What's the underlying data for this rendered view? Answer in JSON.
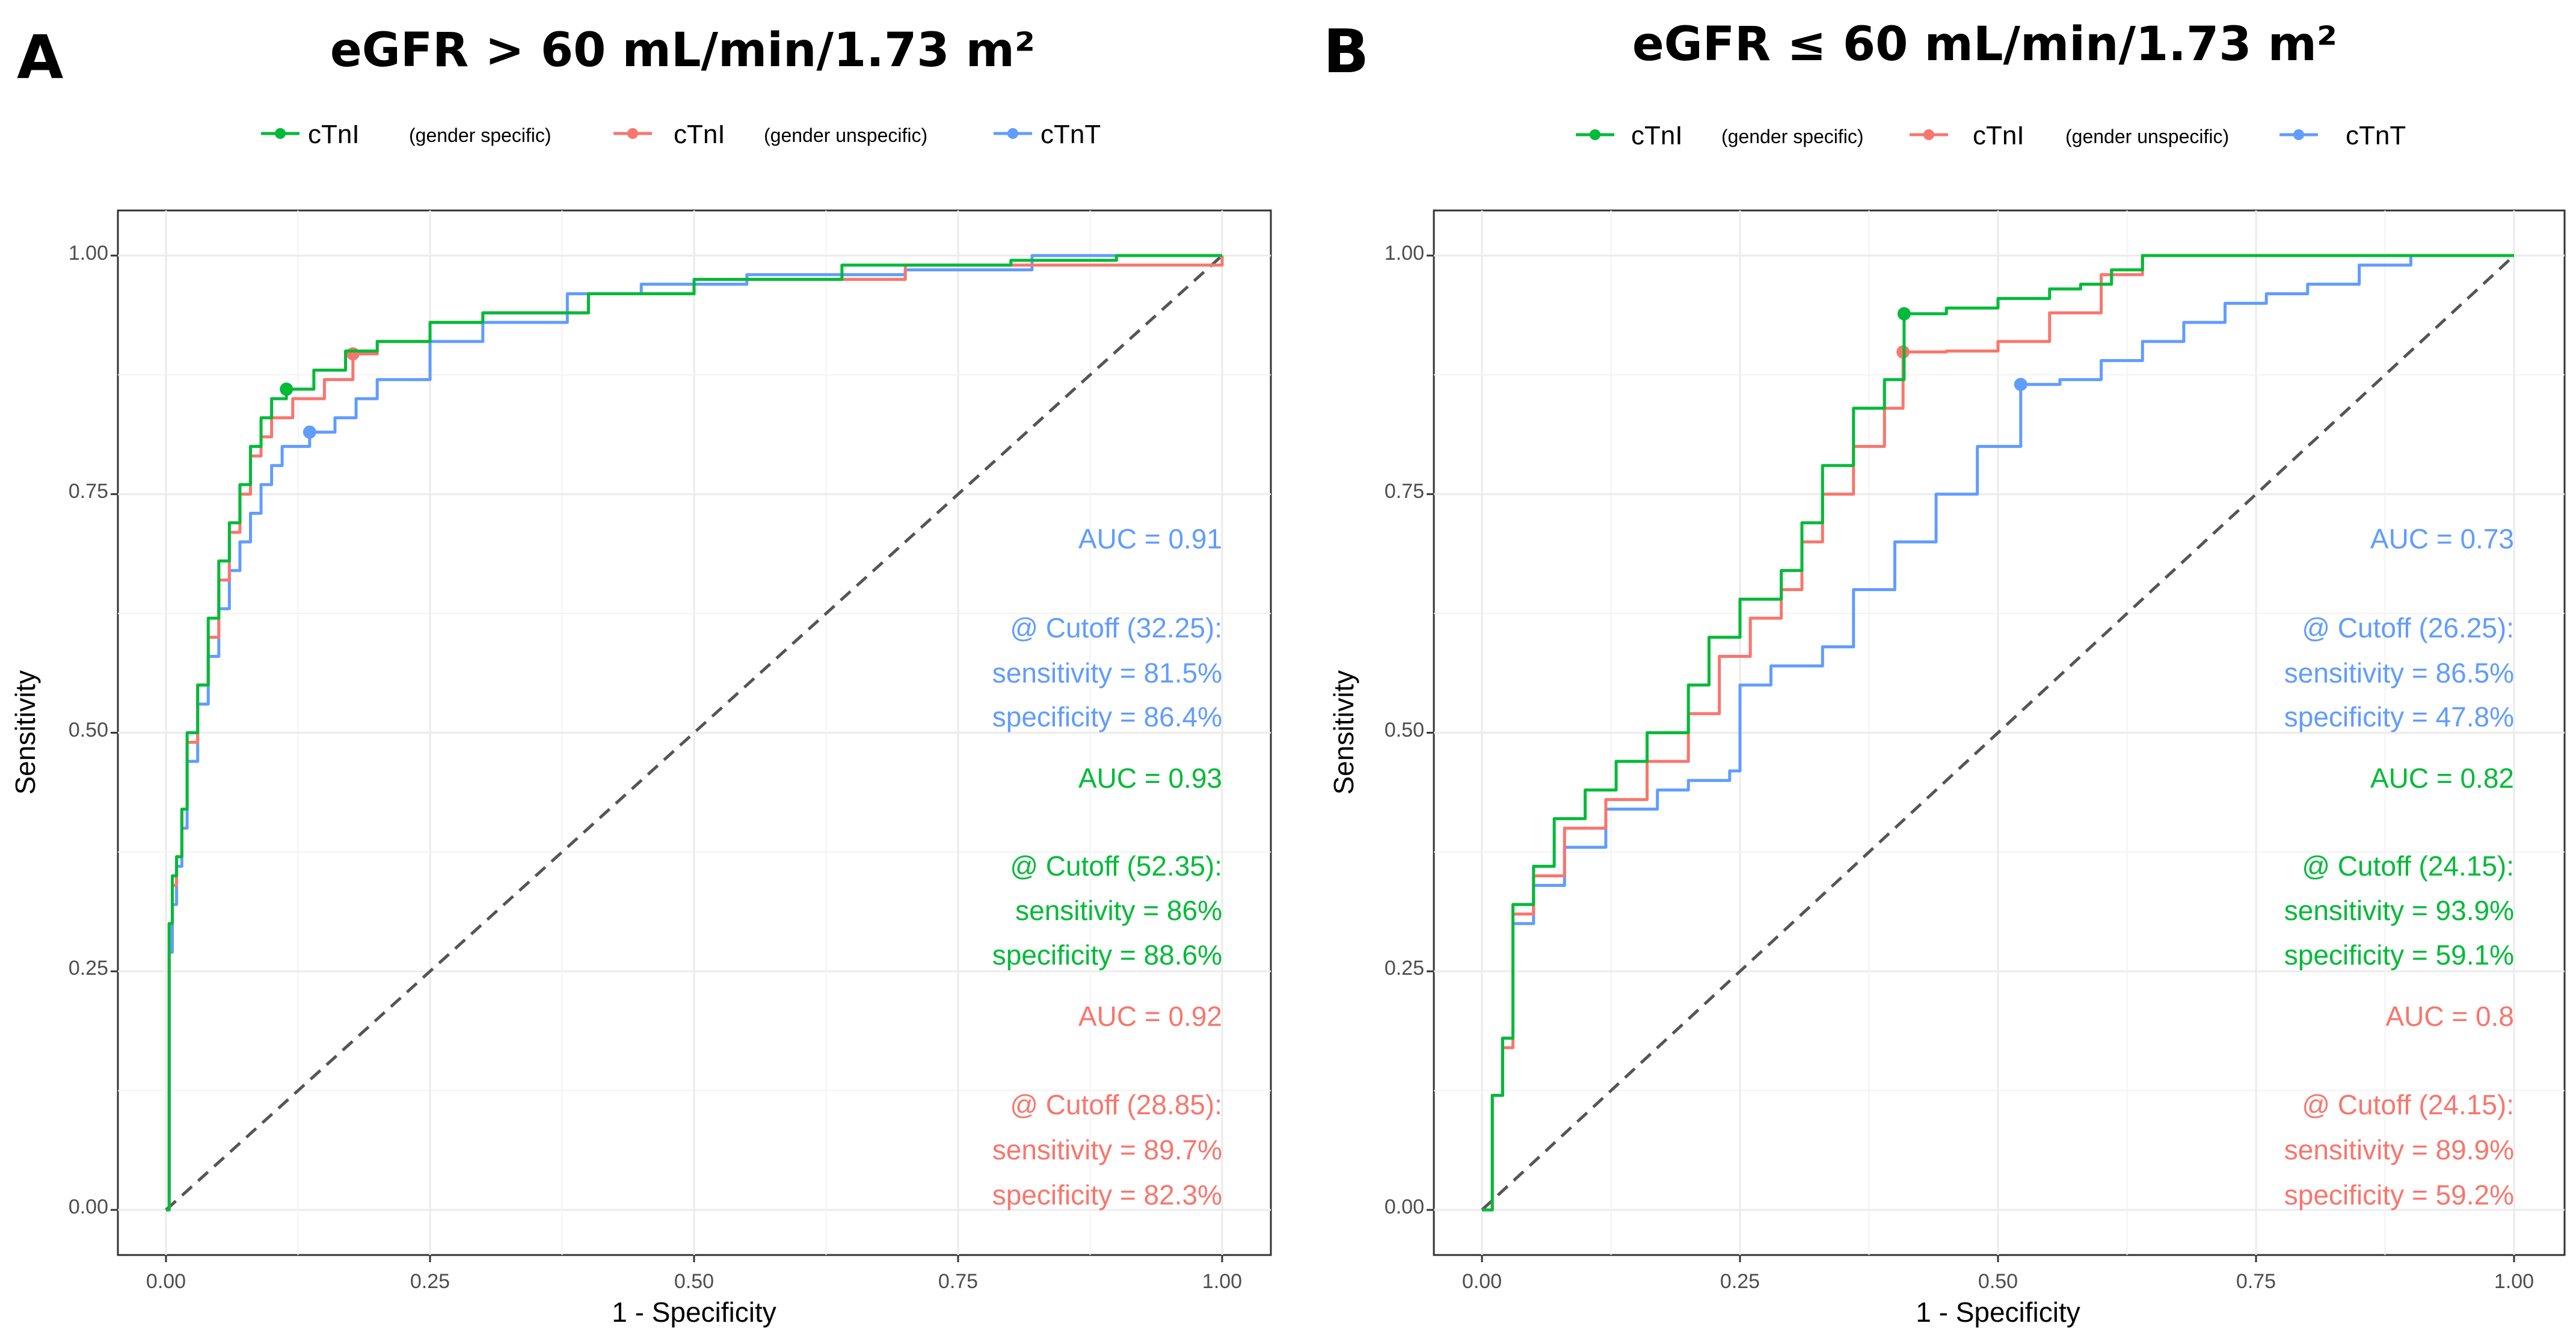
{
  "chart_data": [
    {
      "type": "line",
      "panel_label": "A",
      "title": "eGFR > 60 mL/min/1.73 m²",
      "xlabel": "1 - Specificity",
      "ylabel": "Sensitivity",
      "xlim": [
        0,
        1
      ],
      "ylim": [
        0,
        1
      ],
      "xticks": [
        "0.00",
        "0.25",
        "0.50",
        "0.75",
        "1.00"
      ],
      "yticks": [
        "0.00",
        "0.25",
        "0.50",
        "0.75",
        "1.00"
      ],
      "legend": [
        {
          "name": "cTnI",
          "qualifier": "(gender specific)",
          "color": "#00BA38"
        },
        {
          "name": "cTnI",
          "qualifier": "(gender unspecific)",
          "color": "#F8766D"
        },
        {
          "name": "cTnT",
          "qualifier": "",
          "color": "#619CFF"
        }
      ],
      "series": [
        {
          "name": "cTnI (gender specific)",
          "color": "#00BA38",
          "x": [
            0,
            0.003,
            0.006,
            0.01,
            0.015,
            0.02,
            0.03,
            0.04,
            0.05,
            0.06,
            0.07,
            0.08,
            0.09,
            0.1,
            0.114,
            0.14,
            0.17,
            0.2,
            0.25,
            0.3,
            0.38,
            0.4,
            0.5,
            0.64,
            0.7,
            0.8,
            0.9,
            1.0
          ],
          "y": [
            0,
            0.3,
            0.35,
            0.37,
            0.42,
            0.5,
            0.55,
            0.62,
            0.68,
            0.72,
            0.76,
            0.8,
            0.83,
            0.85,
            0.86,
            0.88,
            0.9,
            0.91,
            0.93,
            0.94,
            0.94,
            0.96,
            0.975,
            0.99,
            0.99,
            0.995,
            1.0,
            1.0
          ],
          "cutoff": {
            "x": 0.114,
            "y": 0.86
          }
        },
        {
          "name": "cTnI (gender unspecific)",
          "color": "#F8766D",
          "x": [
            0,
            0.003,
            0.006,
            0.01,
            0.015,
            0.02,
            0.03,
            0.04,
            0.05,
            0.06,
            0.07,
            0.08,
            0.09,
            0.1,
            0.12,
            0.15,
            0.177,
            0.2,
            0.25,
            0.3,
            0.38,
            0.4,
            0.5,
            0.64,
            0.7,
            0.8,
            0.94,
            1.0
          ],
          "y": [
            0,
            0.3,
            0.34,
            0.37,
            0.42,
            0.49,
            0.55,
            0.6,
            0.66,
            0.71,
            0.75,
            0.79,
            0.81,
            0.83,
            0.85,
            0.87,
            0.897,
            0.91,
            0.93,
            0.94,
            0.94,
            0.96,
            0.975,
            0.975,
            0.99,
            0.99,
            0.99,
            1.0
          ],
          "cutoff": {
            "x": 0.177,
            "y": 0.897
          }
        },
        {
          "name": "cTnT",
          "color": "#619CFF",
          "x": [
            0,
            0.003,
            0.006,
            0.01,
            0.015,
            0.02,
            0.03,
            0.04,
            0.05,
            0.06,
            0.07,
            0.08,
            0.09,
            0.1,
            0.11,
            0.136,
            0.16,
            0.18,
            0.2,
            0.25,
            0.3,
            0.38,
            0.45,
            0.55,
            0.7,
            0.82,
            1.0
          ],
          "y": [
            0,
            0.27,
            0.32,
            0.36,
            0.4,
            0.47,
            0.53,
            0.58,
            0.63,
            0.67,
            0.7,
            0.73,
            0.76,
            0.78,
            0.8,
            0.815,
            0.83,
            0.85,
            0.87,
            0.91,
            0.93,
            0.96,
            0.97,
            0.98,
            0.985,
            1.0,
            1.0
          ],
          "cutoff": {
            "x": 0.136,
            "y": 0.815
          }
        },
        {
          "name": "reference",
          "color": "#555555",
          "x": [
            0,
            1
          ],
          "y": [
            0,
            1
          ],
          "dashed": true
        }
      ],
      "annotations": [
        {
          "color": "#619CFF",
          "lines": [
            "AUC = 0.91",
            "@ Cutoff (32.25):",
            "sensitivity = 81.5%",
            "specificity = 86.4%"
          ]
        },
        {
          "color": "#00BA38",
          "lines": [
            "AUC = 0.93",
            "@ Cutoff (52.35):",
            "sensitivity = 86%",
            "specificity = 88.6%"
          ]
        },
        {
          "color": "#F8766D",
          "lines": [
            "AUC = 0.92",
            "@ Cutoff (28.85):",
            "sensitivity = 89.7%",
            "specificity = 82.3%"
          ]
        }
      ]
    },
    {
      "type": "line",
      "panel_label": "B",
      "title": "eGFR ≤ 60 mL/min/1.73 m²",
      "xlabel": "1 - Specificity",
      "ylabel": "Sensitivity",
      "xlim": [
        0,
        1
      ],
      "ylim": [
        0,
        1
      ],
      "xticks": [
        "0.00",
        "0.25",
        "0.50",
        "0.75",
        "1.00"
      ],
      "yticks": [
        "0.00",
        "0.25",
        "0.50",
        "0.75",
        "1.00"
      ],
      "legend": [
        {
          "name": "cTnI",
          "qualifier": "(gender specific)",
          "color": "#00BA38"
        },
        {
          "name": "cTnI",
          "qualifier": "(gender unspecific)",
          "color": "#F8766D"
        },
        {
          "name": "cTnT",
          "qualifier": "",
          "color": "#619CFF"
        }
      ],
      "series": [
        {
          "name": "cTnI (gender specific)",
          "color": "#00BA38",
          "x": [
            0,
            0.01,
            0.02,
            0.03,
            0.05,
            0.07,
            0.1,
            0.13,
            0.16,
            0.2,
            0.22,
            0.25,
            0.29,
            0.31,
            0.33,
            0.36,
            0.39,
            0.409,
            0.45,
            0.5,
            0.55,
            0.58,
            0.61,
            0.64,
            0.7,
            0.8,
            1.0
          ],
          "y": [
            0,
            0.12,
            0.18,
            0.32,
            0.36,
            0.41,
            0.44,
            0.47,
            0.5,
            0.55,
            0.6,
            0.64,
            0.67,
            0.72,
            0.78,
            0.84,
            0.87,
            0.939,
            0.945,
            0.955,
            0.965,
            0.97,
            0.985,
            1.0,
            1.0,
            1.0,
            1.0
          ],
          "cutoff": {
            "x": 0.409,
            "y": 0.939
          }
        },
        {
          "name": "cTnI (gender unspecific)",
          "color": "#F8766D",
          "x": [
            0,
            0.01,
            0.02,
            0.03,
            0.05,
            0.08,
            0.12,
            0.16,
            0.2,
            0.23,
            0.26,
            0.29,
            0.31,
            0.33,
            0.36,
            0.39,
            0.408,
            0.45,
            0.5,
            0.55,
            0.6,
            0.64,
            0.7,
            0.8,
            0.88,
            1.0
          ],
          "y": [
            0,
            0.12,
            0.17,
            0.31,
            0.35,
            0.4,
            0.43,
            0.47,
            0.52,
            0.58,
            0.62,
            0.65,
            0.7,
            0.75,
            0.8,
            0.84,
            0.899,
            0.9,
            0.91,
            0.94,
            0.98,
            1.0,
            1.0,
            1.0,
            1.0,
            1.0
          ],
          "cutoff": {
            "x": 0.408,
            "y": 0.899
          }
        },
        {
          "name": "cTnT",
          "color": "#619CFF",
          "x": [
            0,
            0.01,
            0.02,
            0.03,
            0.05,
            0.08,
            0.12,
            0.17,
            0.2,
            0.24,
            0.25,
            0.28,
            0.33,
            0.36,
            0.4,
            0.44,
            0.48,
            0.522,
            0.56,
            0.6,
            0.64,
            0.68,
            0.72,
            0.76,
            0.8,
            0.85,
            0.9,
            1.0
          ],
          "y": [
            0,
            0.12,
            0.18,
            0.3,
            0.34,
            0.38,
            0.42,
            0.44,
            0.45,
            0.46,
            0.55,
            0.57,
            0.59,
            0.65,
            0.7,
            0.75,
            0.8,
            0.865,
            0.87,
            0.89,
            0.91,
            0.93,
            0.95,
            0.96,
            0.97,
            0.99,
            1.0,
            1.0
          ],
          "cutoff": {
            "x": 0.522,
            "y": 0.865
          }
        },
        {
          "name": "reference",
          "color": "#555555",
          "x": [
            0,
            1
          ],
          "y": [
            0,
            1
          ],
          "dashed": true
        }
      ],
      "annotations": [
        {
          "color": "#619CFF",
          "lines": [
            "AUC = 0.73",
            "@ Cutoff (26.25):",
            "sensitivity = 86.5%",
            "specificity = 47.8%"
          ]
        },
        {
          "color": "#00BA38",
          "lines": [
            "AUC = 0.82",
            "@ Cutoff (24.15):",
            "sensitivity = 93.9%",
            "specificity = 59.1%"
          ]
        },
        {
          "color": "#F8766D",
          "lines": [
            "AUC = 0.8",
            "@ Cutoff (24.15):",
            "sensitivity = 89.9%",
            "specificity = 59.2%"
          ]
        }
      ]
    }
  ]
}
